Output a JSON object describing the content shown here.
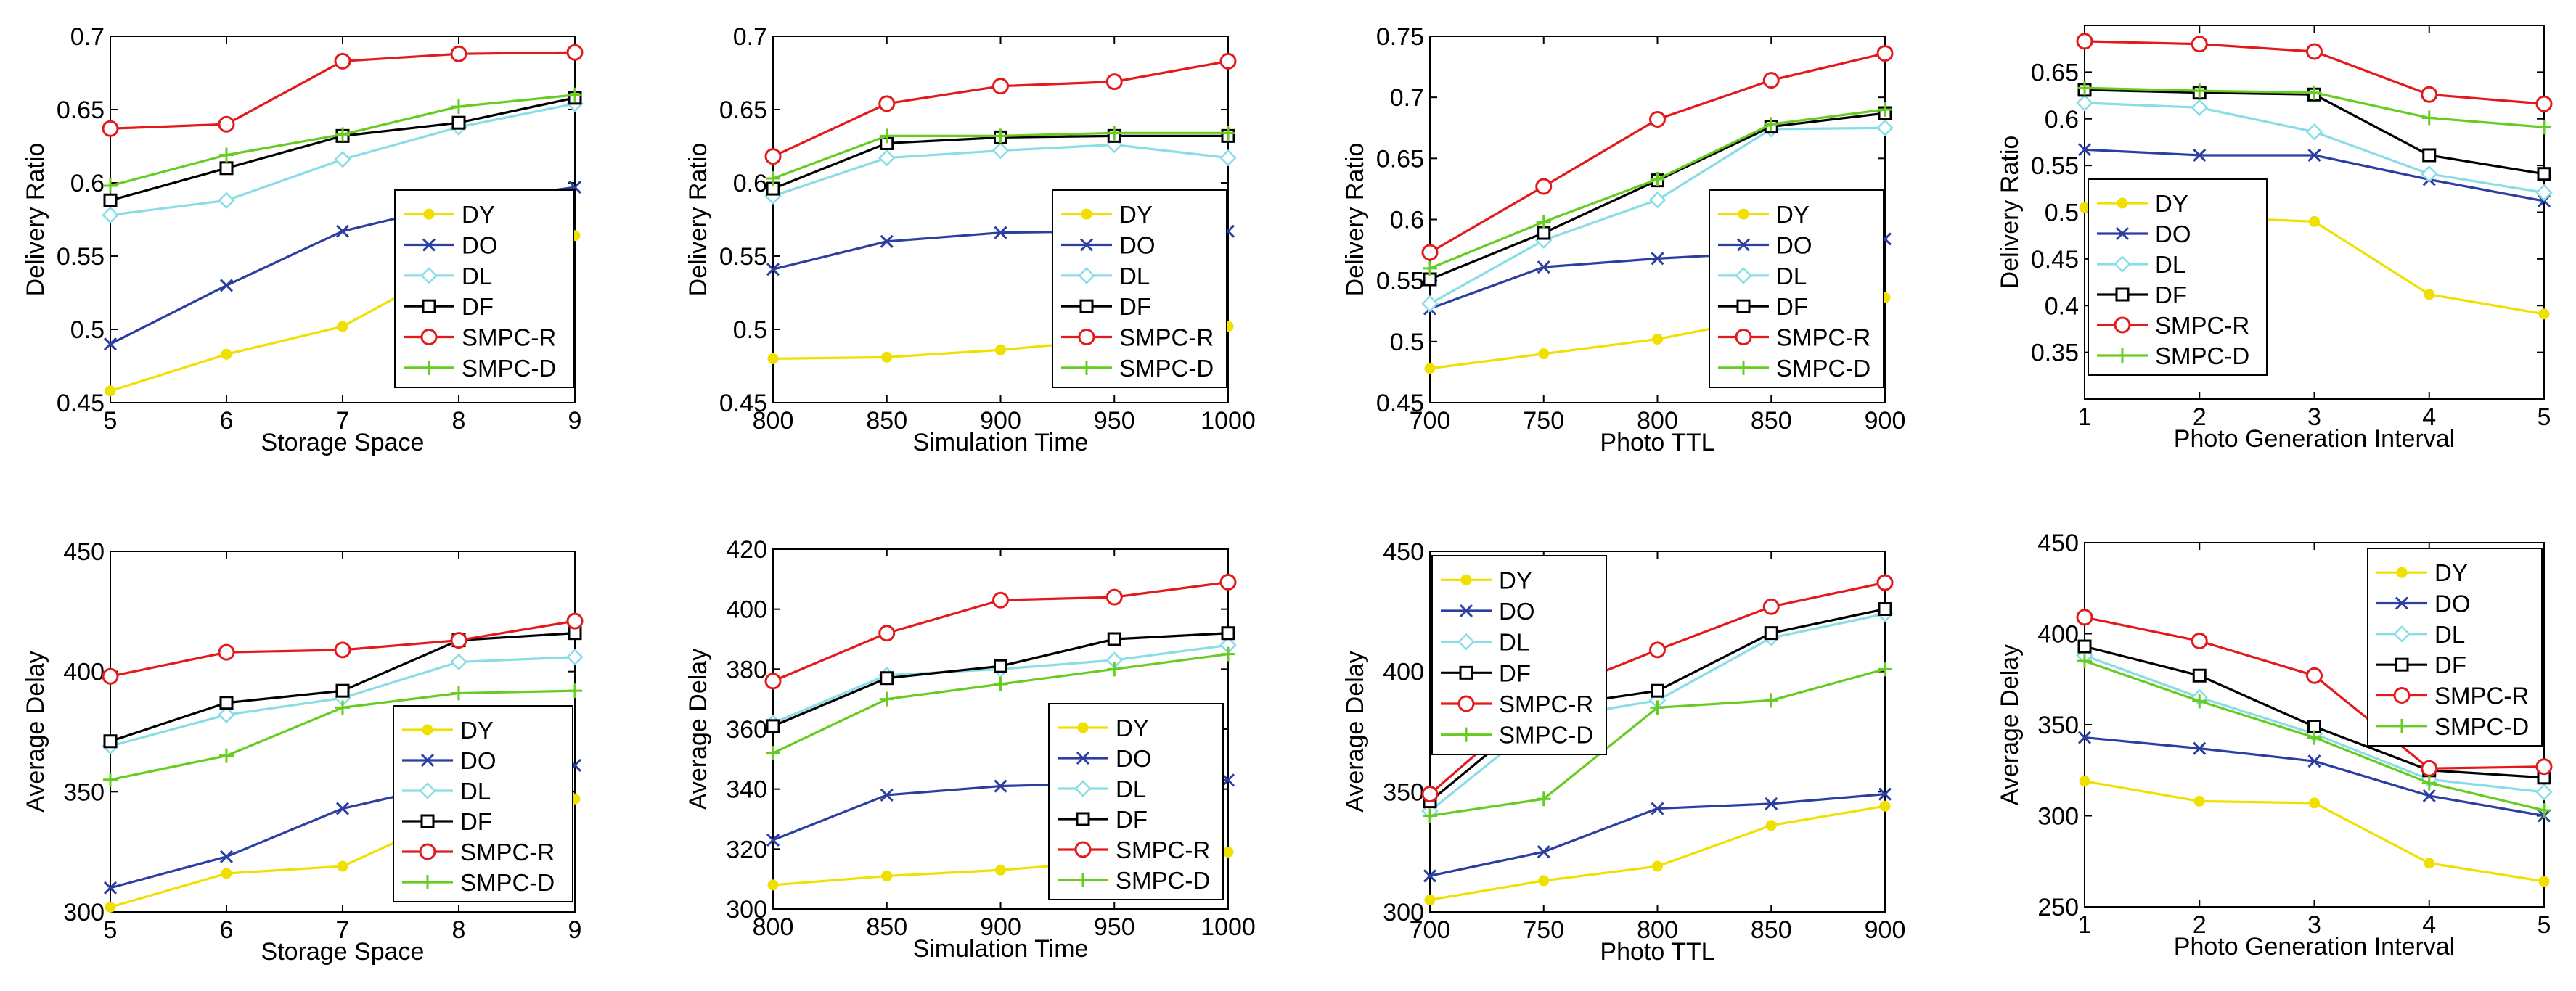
{
  "chart_data": [
    {
      "type": "line",
      "x": [
        5,
        6,
        7,
        8,
        9
      ],
      "xlabel": "Storage Space",
      "ylabel": "Delivery Ratio",
      "xlim": [
        5,
        9
      ],
      "ylim": [
        0.45,
        0.7
      ],
      "xticks": [
        5,
        6,
        7,
        8,
        9
      ],
      "yticks": [
        0.45,
        0.5,
        0.55,
        0.6,
        0.65,
        0.7
      ],
      "ytick_labels": [
        "0.45",
        "0.5",
        "0.55",
        "0.6",
        "0.65",
        "0.7"
      ],
      "legend": "lower-right",
      "series": [
        {
          "name": "DY",
          "values": [
            0.458,
            0.483,
            0.502,
            0.545,
            0.564
          ]
        },
        {
          "name": "DO",
          "values": [
            0.49,
            0.53,
            0.567,
            0.586,
            0.597
          ]
        },
        {
          "name": "DL",
          "values": [
            0.578,
            0.588,
            0.616,
            0.638,
            0.654
          ]
        },
        {
          "name": "DF",
          "values": [
            0.588,
            0.61,
            0.632,
            0.641,
            0.658
          ]
        },
        {
          "name": "SMPC-R",
          "values": [
            0.637,
            0.64,
            0.683,
            0.688,
            0.689
          ]
        },
        {
          "name": "SMPC-D",
          "values": [
            0.598,
            0.619,
            0.633,
            0.652,
            0.66
          ]
        }
      ]
    },
    {
      "type": "line",
      "x": [
        800,
        850,
        900,
        950,
        1000
      ],
      "xlabel": "Simulation Time",
      "ylabel": "Delivery Ratio",
      "xlim": [
        800,
        1000
      ],
      "ylim": [
        0.45,
        0.7
      ],
      "xticks": [
        800,
        850,
        900,
        950,
        1000
      ],
      "yticks": [
        0.45,
        0.5,
        0.55,
        0.6,
        0.65,
        0.7
      ],
      "ytick_labels": [
        "0.45",
        "0.5",
        "0.55",
        "0.6",
        "0.65",
        "0.7"
      ],
      "legend": "lower-right",
      "series": [
        {
          "name": "DY",
          "values": [
            0.48,
            0.481,
            0.486,
            0.493,
            0.502
          ]
        },
        {
          "name": "DO",
          "values": [
            0.541,
            0.56,
            0.566,
            0.567,
            0.567
          ]
        },
        {
          "name": "DL",
          "values": [
            0.591,
            0.617,
            0.622,
            0.626,
            0.617
          ]
        },
        {
          "name": "DF",
          "values": [
            0.596,
            0.627,
            0.631,
            0.632,
            0.632
          ]
        },
        {
          "name": "SMPC-R",
          "values": [
            0.618,
            0.654,
            0.666,
            0.669,
            0.683
          ]
        },
        {
          "name": "SMPC-D",
          "values": [
            0.603,
            0.632,
            0.632,
            0.634,
            0.634
          ]
        }
      ]
    },
    {
      "type": "line",
      "x": [
        700,
        750,
        800,
        850,
        900
      ],
      "xlabel": "Photo TTL",
      "ylabel": "Delivery Ratio",
      "xlim": [
        700,
        900
      ],
      "ylim": [
        0.45,
        0.75
      ],
      "xticks": [
        700,
        750,
        800,
        850,
        900
      ],
      "yticks": [
        0.45,
        0.5,
        0.55,
        0.6,
        0.65,
        0.7,
        0.75
      ],
      "ytick_labels": [
        "0.45",
        "0.5",
        "0.55",
        "0.6",
        "0.65",
        "0.7",
        "0.75"
      ],
      "legend": "lower-right",
      "series": [
        {
          "name": "DY",
          "values": [
            0.478,
            0.49,
            0.502,
            0.52,
            0.536
          ]
        },
        {
          "name": "DO",
          "values": [
            0.527,
            0.561,
            0.568,
            0.573,
            0.584
          ]
        },
        {
          "name": "DL",
          "values": [
            0.531,
            0.583,
            0.616,
            0.674,
            0.675
          ]
        },
        {
          "name": "DF",
          "values": [
            0.551,
            0.589,
            0.632,
            0.676,
            0.687
          ]
        },
        {
          "name": "SMPC-R",
          "values": [
            0.573,
            0.627,
            0.682,
            0.714,
            0.736
          ]
        },
        {
          "name": "SMPC-D",
          "values": [
            0.56,
            0.598,
            0.633,
            0.678,
            0.69
          ]
        }
      ]
    },
    {
      "type": "line",
      "x": [
        1,
        2,
        3,
        4,
        5
      ],
      "xlabel": "Photo Generation Interval",
      "ylabel": "Delivery Ratio",
      "xlim": [
        1,
        5
      ],
      "ylim": [
        0.3,
        0.7
      ],
      "xticks": [
        1,
        2,
        3,
        4,
        5
      ],
      "yticks": [
        0.35,
        0.4,
        0.45,
        0.5,
        0.55,
        0.6,
        0.65
      ],
      "ytick_labels": [
        "0.35",
        "0.4",
        "0.45",
        "0.5",
        "0.55",
        "0.6",
        "0.65"
      ],
      "legend": "lower-left",
      "series": [
        {
          "name": "DY",
          "values": [
            0.505,
            0.495,
            0.49,
            0.412,
            0.391
          ]
        },
        {
          "name": "DO",
          "values": [
            0.567,
            0.561,
            0.561,
            0.535,
            0.512
          ]
        },
        {
          "name": "DL",
          "values": [
            0.617,
            0.612,
            0.586,
            0.541,
            0.521
          ]
        },
        {
          "name": "DF",
          "values": [
            0.631,
            0.628,
            0.626,
            0.561,
            0.541
          ]
        },
        {
          "name": "SMPC-R",
          "values": [
            0.683,
            0.68,
            0.672,
            0.626,
            0.616
          ]
        },
        {
          "name": "SMPC-D",
          "values": [
            0.633,
            0.63,
            0.628,
            0.601,
            0.591
          ]
        }
      ]
    },
    {
      "type": "line",
      "x": [
        5,
        6,
        7,
        8,
        9
      ],
      "xlabel": "Storage Space",
      "ylabel": "Average Delay",
      "xlim": [
        5,
        9
      ],
      "ylim": [
        300,
        450
      ],
      "xticks": [
        5,
        6,
        7,
        8,
        9
      ],
      "yticks": [
        300,
        350,
        400,
        450
      ],
      "ytick_labels": [
        "300",
        "350",
        "400",
        "450"
      ],
      "legend": "lower-right",
      "series": [
        {
          "name": "DY",
          "values": [
            302,
            316,
            319,
            341,
            347
          ]
        },
        {
          "name": "DO",
          "values": [
            310,
            323,
            343,
            354,
            361
          ]
        },
        {
          "name": "DL",
          "values": [
            369,
            382,
            389,
            404,
            406
          ]
        },
        {
          "name": "DF",
          "values": [
            371,
            387,
            392,
            413,
            416
          ]
        },
        {
          "name": "SMPC-R",
          "values": [
            398,
            408,
            409,
            413,
            421
          ]
        },
        {
          "name": "SMPC-D",
          "values": [
            355,
            365,
            385,
            391,
            392
          ]
        }
      ]
    },
    {
      "type": "line",
      "x": [
        800,
        850,
        900,
        950,
        1000
      ],
      "xlabel": "Simulation Time",
      "ylabel": "Average Delay",
      "xlim": [
        800,
        1000
      ],
      "ylim": [
        300,
        420
      ],
      "xticks": [
        800,
        850,
        900,
        950,
        1000
      ],
      "yticks": [
        300,
        320,
        340,
        360,
        380,
        400,
        420
      ],
      "ytick_labels": [
        "300",
        "320",
        "340",
        "360",
        "380",
        "400",
        "420"
      ],
      "legend": "lower-right",
      "series": [
        {
          "name": "DY",
          "values": [
            308,
            311,
            313,
            316,
            319
          ]
        },
        {
          "name": "DO",
          "values": [
            323,
            338,
            341,
            342,
            343
          ]
        },
        {
          "name": "DL",
          "values": [
            362,
            378,
            380,
            383,
            388
          ]
        },
        {
          "name": "DF",
          "values": [
            361,
            377,
            381,
            390,
            392
          ]
        },
        {
          "name": "SMPC-R",
          "values": [
            376,
            392,
            403,
            404,
            409
          ]
        },
        {
          "name": "SMPC-D",
          "values": [
            352,
            370,
            375,
            380,
            385
          ]
        }
      ]
    },
    {
      "type": "line",
      "x": [
        700,
        750,
        800,
        850,
        900
      ],
      "xlabel": "Photo TTL",
      "ylabel": "Average Delay",
      "xlim": [
        700,
        900
      ],
      "ylim": [
        300,
        450
      ],
      "xticks": [
        700,
        750,
        800,
        850,
        900
      ],
      "yticks": [
        300,
        350,
        400,
        450
      ],
      "ytick_labels": [
        "300",
        "350",
        "400",
        "450"
      ],
      "legend": "top-left",
      "series": [
        {
          "name": "DY",
          "values": [
            305,
            313,
            319,
            336,
            344
          ]
        },
        {
          "name": "DO",
          "values": [
            315,
            325,
            343,
            345,
            349
          ]
        },
        {
          "name": "DL",
          "values": [
            342,
            380,
            388,
            414,
            424
          ]
        },
        {
          "name": "DF",
          "values": [
            346,
            385,
            392,
            416,
            426
          ]
        },
        {
          "name": "SMPC-R",
          "values": [
            349,
            390,
            409,
            427,
            437
          ]
        },
        {
          "name": "SMPC-D",
          "values": [
            340,
            347,
            385,
            388,
            401
          ]
        }
      ]
    },
    {
      "type": "line",
      "x": [
        1,
        2,
        3,
        4,
        5
      ],
      "xlabel": "Photo Generation Interval",
      "ylabel": "Average Delay",
      "xlim": [
        1,
        5
      ],
      "ylim": [
        250,
        450
      ],
      "xticks": [
        1,
        2,
        3,
        4,
        5
      ],
      "yticks": [
        250,
        300,
        350,
        400,
        450
      ],
      "ytick_labels": [
        "250",
        "300",
        "350",
        "400",
        "450"
      ],
      "legend": "top-right",
      "series": [
        {
          "name": "DY",
          "values": [
            319,
            308,
            307,
            274,
            264
          ]
        },
        {
          "name": "DO",
          "values": [
            343,
            337,
            330,
            311,
            300
          ]
        },
        {
          "name": "DL",
          "values": [
            388,
            365,
            345,
            320,
            313
          ]
        },
        {
          "name": "DF",
          "values": [
            393,
            377,
            349,
            325,
            321
          ]
        },
        {
          "name": "SMPC-R",
          "values": [
            409,
            396,
            377,
            326,
            327
          ]
        },
        {
          "name": "SMPC-D",
          "values": [
            385,
            363,
            343,
            318,
            303
          ]
        }
      ]
    }
  ],
  "series_styles": [
    {
      "name": "DY",
      "color": "#f0e000",
      "marker": "dot"
    },
    {
      "name": "DO",
      "color": "#2b3fa3",
      "marker": "x"
    },
    {
      "name": "DL",
      "color": "#88dde6",
      "marker": "diamond"
    },
    {
      "name": "DF",
      "color": "#000000",
      "marker": "square"
    },
    {
      "name": "SMPC-R",
      "color": "#e31a1c",
      "marker": "circle"
    },
    {
      "name": "SMPC-D",
      "color": "#66cc22",
      "marker": "plus"
    }
  ]
}
